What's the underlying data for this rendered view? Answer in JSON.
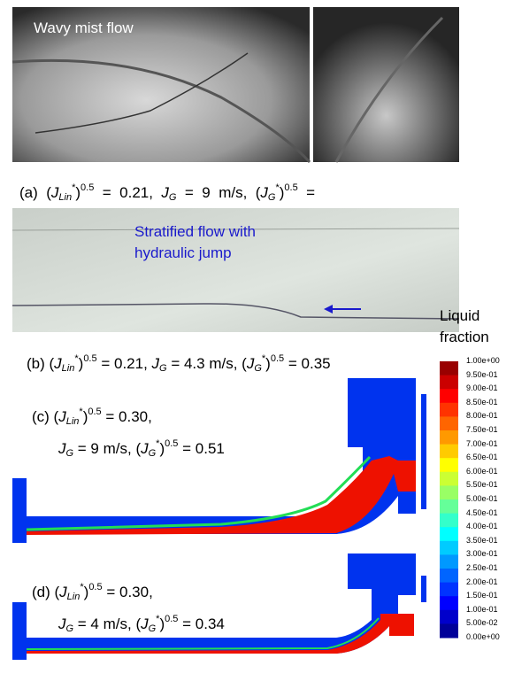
{
  "panels": [
    {
      "photo_label": "Wavy mist flow",
      "caption": [
        "(a)  (",
        "J",
        "Lin",
        "*",
        ")",
        "0.5",
        "  =  0.21,  ",
        "J",
        "G",
        "  =  9  m/s,  (",
        "J",
        "G",
        "*",
        ")",
        "0.5",
        "  ="
      ]
    },
    {
      "photo_label": [
        "Stratified flow with",
        "hydraulic jump"
      ],
      "caption": [
        "(b) (",
        "J",
        "Lin",
        "*",
        ")",
        "0.5",
        " = 0.21, ",
        "J",
        "G",
        " = 4.3 m/s, (",
        "J",
        "G",
        "*",
        ")",
        "0.5",
        " = 0.35"
      ]
    },
    {
      "caption": [
        "(c) (",
        "J",
        "Lin",
        "*",
        ")",
        "0.5",
        " = 0.30,",
        "J",
        "G",
        " = 9 m/s, (",
        "J",
        "G",
        "*",
        ")",
        "0.5",
        " = 0.51"
      ]
    },
    {
      "caption": [
        "(d) (",
        "J",
        "Lin",
        "*",
        ")",
        "0.5",
        " = 0.30,",
        "J",
        "G",
        " = 4 m/s, (",
        "J",
        "G",
        "*",
        ")",
        "0.5",
        " = 0.34"
      ]
    }
  ],
  "legend": {
    "title": [
      "Liquid",
      "fraction"
    ],
    "ticks": [
      "1.00e+00",
      "9.50e-01",
      "9.00e-01",
      "8.50e-01",
      "8.00e-01",
      "7.50e-01",
      "7.00e-01",
      "6.50e-01",
      "6.00e-01",
      "5.50e-01",
      "5.00e-01",
      "4.50e-01",
      "4.00e-01",
      "3.50e-01",
      "3.00e-01",
      "2.50e-01",
      "2.00e-01",
      "1.50e-01",
      "1.00e-01",
      "5.00e-02",
      "0.00e+00"
    ]
  }
}
